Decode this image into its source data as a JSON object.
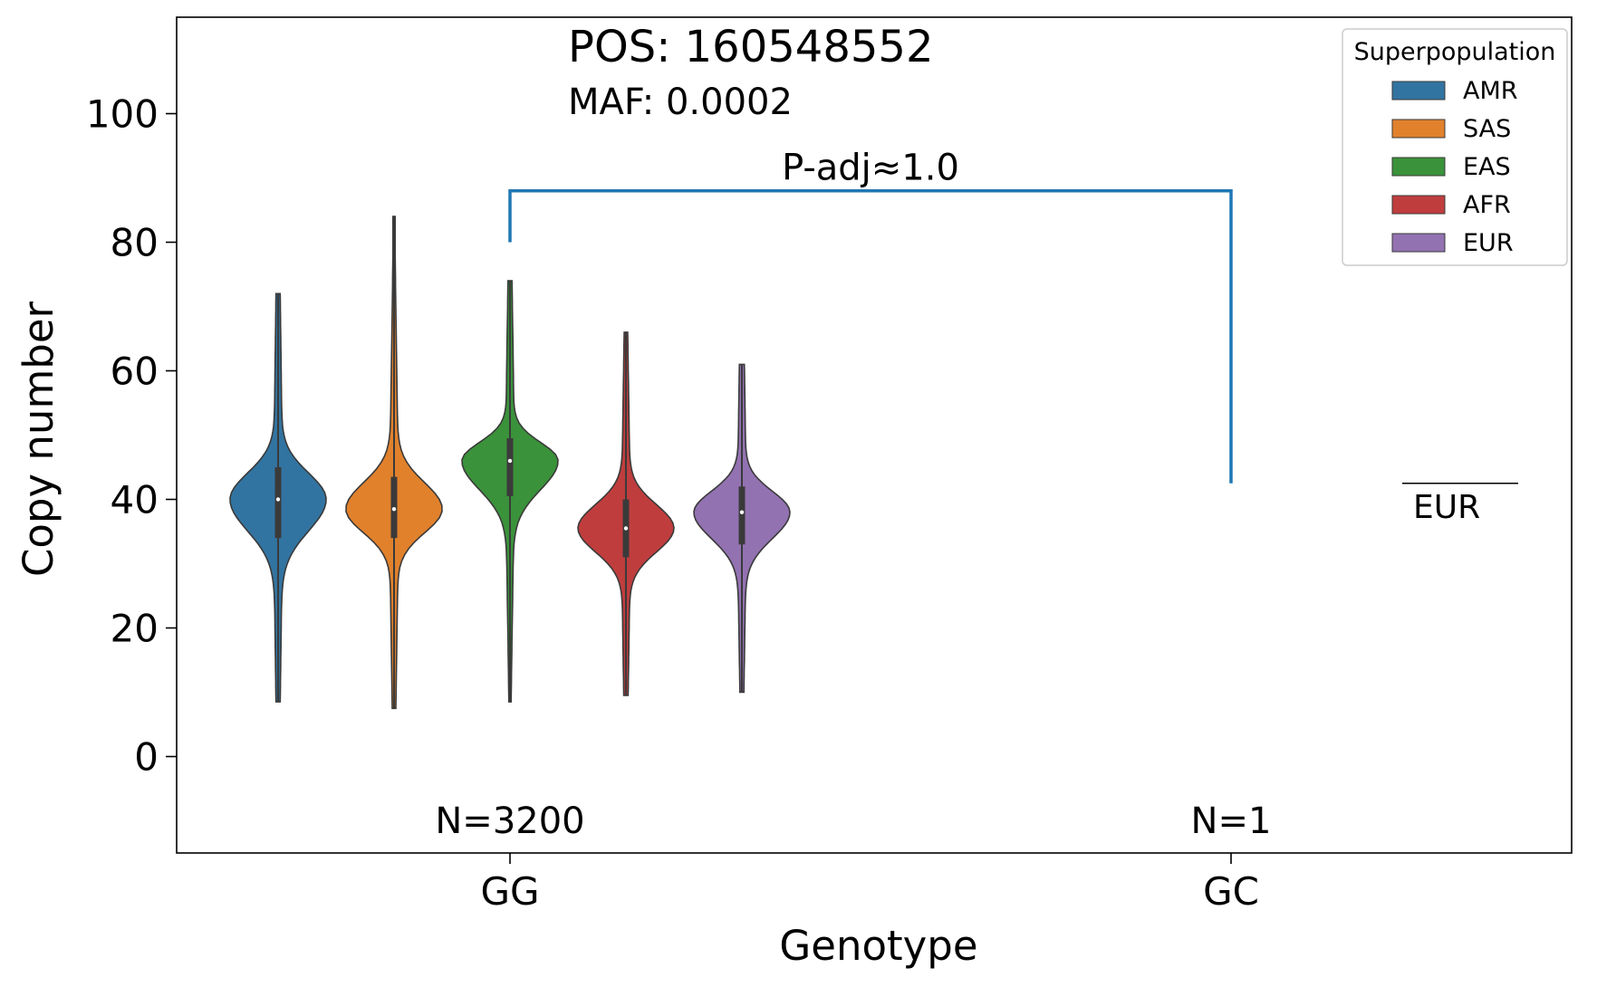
{
  "chart_data": {
    "type": "violin",
    "xlabel": "Genotype",
    "ylabel": "Copy number",
    "categories": [
      "GG",
      "GC"
    ],
    "ylim": [
      -15,
      115
    ],
    "yticks": [
      0,
      20,
      40,
      60,
      80,
      100
    ],
    "annotations": {
      "pos": "POS: 160548552",
      "maf": "MAF: 0.0002",
      "p_adj": "P-adj≈1.0",
      "n_gg": "N=3200",
      "n_gc": "N=1",
      "single_label": "EUR"
    },
    "single_point": {
      "category": "GC",
      "series": "EUR",
      "y": 42.5
    },
    "bracket": {
      "from": "GG",
      "to": "GC",
      "y": 88,
      "left_end": 80,
      "right_end": 42.5
    },
    "legend": {
      "title": "Superpopulation",
      "placement": "top-right"
    },
    "series": [
      {
        "name": "AMR",
        "color": "#3274a1",
        "min": 8.5,
        "q1": 34,
        "median": 40,
        "q3": 45,
        "max": 72
      },
      {
        "name": "SAS",
        "color": "#e1812c",
        "min": 7.5,
        "q1": 34,
        "median": 38.5,
        "q3": 43.5,
        "max": 84
      },
      {
        "name": "EAS",
        "color": "#3a923a",
        "min": 8.5,
        "q1": 40.5,
        "median": 46,
        "q3": 49.5,
        "max": 74
      },
      {
        "name": "AFR",
        "color": "#c03d3e",
        "min": 9.5,
        "q1": 31,
        "median": 35.5,
        "q3": 40,
        "max": 66
      },
      {
        "name": "EUR",
        "color": "#9372b2",
        "min": 10,
        "q1": 33,
        "median": 38,
        "q3": 42,
        "max": 61
      }
    ]
  }
}
